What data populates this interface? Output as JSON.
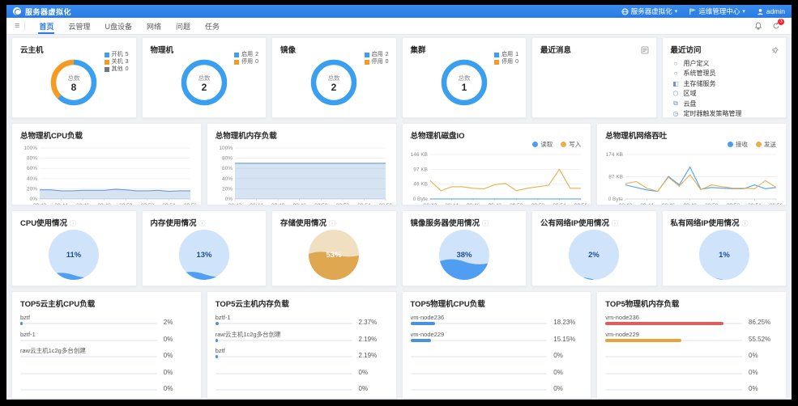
{
  "topbar": {
    "title": "服务器虚拟化",
    "right_menus": [
      {
        "icon": "globe-icon",
        "label": "服务器虚拟化",
        "dropdown": true
      },
      {
        "icon": "flag-icon",
        "label": "运维管理中心",
        "dropdown": true
      },
      {
        "icon": "user-icon",
        "label": "admin",
        "dropdown": false
      }
    ]
  },
  "navbar": {
    "items": [
      {
        "label": "首页",
        "active": true
      },
      {
        "label": "云管理",
        "active": false
      },
      {
        "label": "U盘设备",
        "active": false
      },
      {
        "label": "网络",
        "active": false
      },
      {
        "label": "问题",
        "active": false
      },
      {
        "label": "任务",
        "active": false
      }
    ],
    "badge_count": "3"
  },
  "donut_cards": [
    {
      "title": "云主机",
      "center_label": "总数",
      "total": "8",
      "legend": [
        {
          "label": "开机",
          "value": 5,
          "color": "#3b9ff0"
        },
        {
          "label": "关机",
          "value": 3,
          "color": "#f59a23"
        },
        {
          "label": "其他",
          "value": 0,
          "color": "#6b7785"
        }
      ]
    },
    {
      "title": "物理机",
      "center_label": "总数",
      "total": "2",
      "legend": [
        {
          "label": "启用",
          "value": 2,
          "color": "#3b9ff0"
        },
        {
          "label": "停用",
          "value": 0,
          "color": "#f59a23"
        }
      ]
    },
    {
      "title": "镜像",
      "center_label": "总数",
      "total": "2",
      "legend": [
        {
          "label": "启用",
          "value": 2,
          "color": "#3b9ff0"
        },
        {
          "label": "停用",
          "value": 0,
          "color": "#f59a23"
        }
      ]
    },
    {
      "title": "集群",
      "center_label": "总数",
      "total": "1",
      "legend": [
        {
          "label": "启用",
          "value": 1,
          "color": "#3b9ff0"
        },
        {
          "label": "停用",
          "value": 0,
          "color": "#f59a23"
        }
      ]
    }
  ],
  "message_card": {
    "title": "最近消息",
    "icon": "list-icon"
  },
  "recent_card": {
    "title": "最近访问",
    "icon": "pin-icon",
    "items": [
      {
        "icon": "spec-icon",
        "glyph": "○",
        "label": "用户定义"
      },
      {
        "icon": "admin-icon",
        "glyph": "○",
        "label": "系统管理员"
      },
      {
        "icon": "storage-icon",
        "glyph": "◧",
        "label": "主存储服务"
      },
      {
        "icon": "zone-icon",
        "glyph": "⬡",
        "label": "区域"
      },
      {
        "icon": "disk-icon",
        "glyph": "⧉",
        "label": "云盘"
      },
      {
        "icon": "timer-icon",
        "glyph": "◷",
        "label": "定时器触发策略管理"
      }
    ]
  },
  "chart_data": {
    "x_labels": [
      "09:42",
      "09:44",
      "09:46",
      "09:48",
      "09:50",
      "09:52",
      "09:54",
      "09:56"
    ],
    "line_charts": [
      {
        "type": "area",
        "title": "总物理机CPU负载",
        "ylim": [
          0,
          100
        ],
        "yticks": [
          "0%",
          "20%",
          "40%",
          "60%",
          "80%",
          "100%"
        ],
        "series": [
          {
            "name": "CPU负载",
            "color": "#6c9bd2",
            "fill": true,
            "values": [
              18,
              18,
              16,
              16,
              17,
              17,
              17,
              19,
              18,
              16,
              16,
              17,
              15,
              16,
              16
            ]
          }
        ]
      },
      {
        "type": "area",
        "title": "总物理机内存负载",
        "ylim": [
          0,
          100
        ],
        "yticks": [
          "0%",
          "20%",
          "40%",
          "60%",
          "80%",
          "100%"
        ],
        "series": [
          {
            "name": "内存负载",
            "color": "#6c9bd2",
            "fill": true,
            "values": [
              70,
              70,
              70,
              70,
              70,
              70,
              70,
              70,
              70,
              70,
              70,
              70,
              70,
              70,
              70
            ]
          }
        ]
      },
      {
        "type": "line",
        "title": "总物理机磁盘IO",
        "ylim": [
          0,
          146
        ],
        "yticks": [
          "0 Byte",
          "49 KB",
          "97 KB",
          "146 KB"
        ],
        "legend": [
          {
            "name": "读取",
            "color": "#4a9df0"
          },
          {
            "name": "写入",
            "color": "#e8b04a"
          }
        ],
        "series": [
          {
            "name": "读取",
            "color": "#4a9df0",
            "fill": false,
            "values": [
              0,
              0,
              0,
              0,
              0,
              0,
              0,
              0,
              0,
              0,
              0,
              0,
              0,
              0,
              0
            ]
          },
          {
            "name": "写入",
            "color": "#e8b04a",
            "fill": false,
            "values": [
              60,
              27,
              40,
              40,
              35,
              33,
              47,
              51,
              27,
              35,
              40,
              45,
              97,
              35,
              35
            ]
          }
        ]
      },
      {
        "type": "line",
        "title": "总物理机网络吞吐",
        "ylim": [
          0,
          174
        ],
        "yticks": [
          "0 Byte",
          "87 KB",
          "174 KB"
        ],
        "legend": [
          {
            "name": "接收",
            "color": "#4a9df0"
          },
          {
            "name": "发送",
            "color": "#e8b04a"
          }
        ],
        "series": [
          {
            "name": "接收",
            "color": "#4a9df0",
            "fill": false,
            "values": [
              55,
              45,
              35,
              30,
              88,
              55,
              125,
              38,
              45,
              42,
              40,
              40,
              55,
              40,
              45
            ]
          },
          {
            "name": "发送",
            "color": "#e8b04a",
            "fill": false,
            "values": [
              60,
              68,
              42,
              30,
              85,
              50,
              95,
              36,
              55,
              48,
              42,
              42,
              40,
              72,
              45
            ]
          }
        ]
      }
    ],
    "gauges": [
      {
        "title": "CPU使用情况",
        "percent": 11,
        "display": "11%",
        "fill": "#4f9ef2",
        "bg": "#cfe3fa",
        "text_color": "#1f4e8c"
      },
      {
        "title": "内存使用情况",
        "percent": 13,
        "display": "13%",
        "fill": "#4f9ef2",
        "bg": "#cfe3fa",
        "text_color": "#1f4e8c"
      },
      {
        "title": "存储使用情况",
        "percent": 53,
        "display": "53%",
        "fill": "#dfa750",
        "bg": "#f0dfc0",
        "text_color": "#ffffff"
      },
      {
        "title": "镜像服务器使用情况",
        "percent": 38,
        "display": "38%",
        "fill": "#4f9ef2",
        "bg": "#cfe3fa",
        "text_color": "#1f4e8c"
      },
      {
        "title": "公有网络IP使用情况",
        "percent": 2,
        "display": "2%",
        "fill": "#4f9ef2",
        "bg": "#cfe3fa",
        "text_color": "#1f4e8c"
      },
      {
        "title": "私有网络IP使用情况",
        "percent": 1,
        "display": "1%",
        "fill": "#4f9ef2",
        "bg": "#cfe3fa",
        "text_color": "#1f4e8c"
      }
    ],
    "top5": [
      {
        "title": "TOP5云主机CPU负载",
        "rows": [
          {
            "label": "bztf",
            "value": "2%",
            "pct": 2,
            "color": "#4a90e2"
          },
          {
            "label": "bztf-1",
            "value": "0%",
            "pct": 0,
            "color": "#4a90e2"
          },
          {
            "label": "raw云主机1c2g多台创建",
            "value": "0%",
            "pct": 0,
            "color": "#4a90e2"
          },
          {
            "label": "",
            "value": "0%",
            "pct": 0,
            "color": "#4a90e2"
          },
          {
            "label": "",
            "value": "0%",
            "pct": 0,
            "color": "#4a90e2"
          }
        ]
      },
      {
        "title": "TOP5云主机内存负载",
        "rows": [
          {
            "label": "bztf-1",
            "value": "2.37%",
            "pct": 2.37,
            "color": "#4a90e2"
          },
          {
            "label": "raw云主机1c2g多台创建",
            "value": "2.19%",
            "pct": 2.19,
            "color": "#4a90e2"
          },
          {
            "label": "bztf",
            "value": "2.19%",
            "pct": 2.19,
            "color": "#4a90e2"
          },
          {
            "label": "",
            "value": "0%",
            "pct": 0,
            "color": "#4a90e2"
          },
          {
            "label": "",
            "value": "0%",
            "pct": 0,
            "color": "#4a90e2"
          }
        ]
      },
      {
        "title": "TOP5物理机CPU负载",
        "rows": [
          {
            "label": "vm-node236",
            "value": "18.23%",
            "pct": 18.23,
            "color": "#4a90e2"
          },
          {
            "label": "vm-node229",
            "value": "15.15%",
            "pct": 15.15,
            "color": "#4a90e2"
          },
          {
            "label": "",
            "value": "0%",
            "pct": 0,
            "color": "#4a90e2"
          },
          {
            "label": "",
            "value": "0%",
            "pct": 0,
            "color": "#4a90e2"
          },
          {
            "label": "",
            "value": "0%",
            "pct": 0,
            "color": "#4a90e2"
          }
        ]
      },
      {
        "title": "TOP5物理机内存负载",
        "rows": [
          {
            "label": "vm-node236",
            "value": "86.25%",
            "pct": 86.25,
            "color": "#e05c5c"
          },
          {
            "label": "vm-node229",
            "value": "55.52%",
            "pct": 55.52,
            "color": "#e8a33d"
          },
          {
            "label": "",
            "value": "0%",
            "pct": 0,
            "color": "#4a90e2"
          },
          {
            "label": "",
            "value": "0%",
            "pct": 0,
            "color": "#4a90e2"
          },
          {
            "label": "",
            "value": "0%",
            "pct": 0,
            "color": "#4a90e2"
          }
        ]
      }
    ]
  }
}
